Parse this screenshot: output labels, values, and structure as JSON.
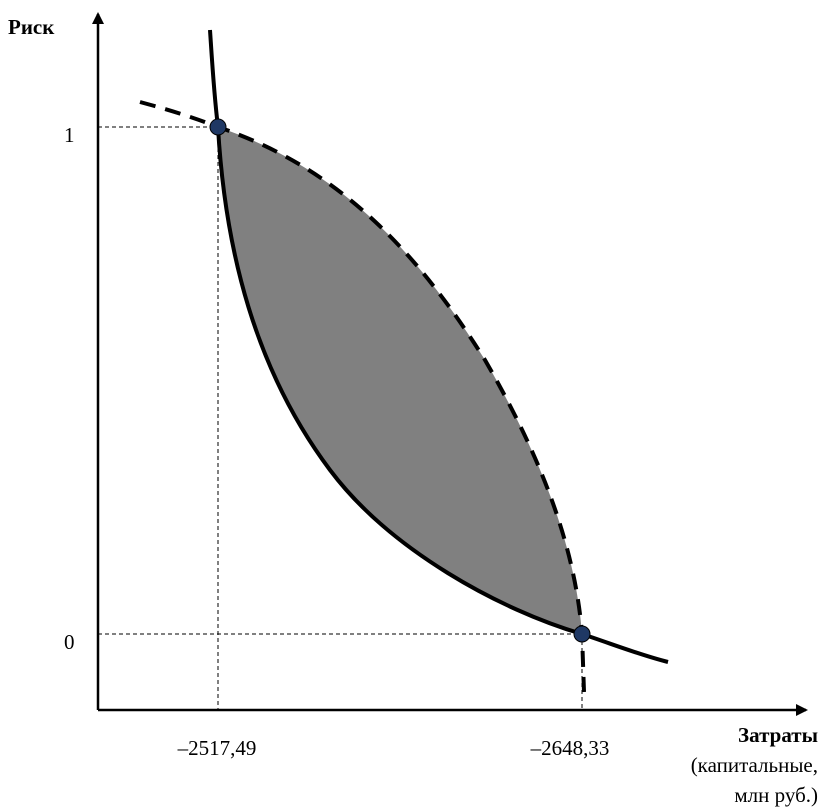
{
  "y_axis": {
    "label": "Риск"
  },
  "x_axis": {
    "label_line1": "Затраты",
    "label_line2": "(капитальные,",
    "label_line3": "млн руб.)"
  },
  "y_ticks": [
    "1",
    "0"
  ],
  "x_ticks": [
    "–2517,49",
    "–2648,33"
  ],
  "colors": {
    "region_fill": "#808080",
    "point_fill": "#1f3864",
    "line": "#000000"
  }
}
